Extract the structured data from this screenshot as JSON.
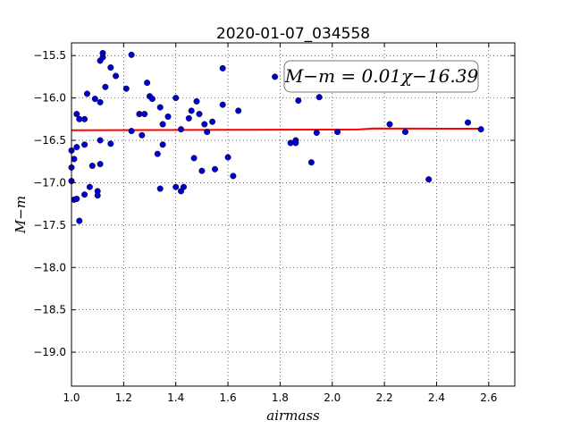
{
  "chart_data": {
    "type": "scatter",
    "title": "2020-01-07_034558",
    "xlabel": "airmass",
    "ylabel": "M−m",
    "xlim": [
      1.0,
      2.7
    ],
    "ylim": [
      -15.35,
      -19.4
    ],
    "y_inverted": true,
    "grid": true,
    "x_ticks": [
      {
        "value": 1.0,
        "label": "1.0"
      },
      {
        "value": 1.2,
        "label": "1.2"
      },
      {
        "value": 1.4,
        "label": "1.4"
      },
      {
        "value": 1.6,
        "label": "1.6"
      },
      {
        "value": 1.8,
        "label": "1.8"
      },
      {
        "value": 2.0,
        "label": "2.0"
      },
      {
        "value": 2.2,
        "label": "2.2"
      },
      {
        "value": 2.4,
        "label": "2.4"
      },
      {
        "value": 2.6,
        "label": "2.6"
      }
    ],
    "y_ticks": [
      {
        "value": -15.5,
        "label": "−15.5"
      },
      {
        "value": -16.0,
        "label": "−16.0"
      },
      {
        "value": -16.5,
        "label": "−16.5"
      },
      {
        "value": -17.0,
        "label": "−17.0"
      },
      {
        "value": -17.5,
        "label": "−17.5"
      },
      {
        "value": -18.0,
        "label": "−18.0"
      },
      {
        "value": -18.5,
        "label": "−18.5"
      },
      {
        "value": -19.0,
        "label": "−19.0"
      }
    ],
    "annotation": "M−m = 0.01χ−16.39",
    "annotation_anchor": {
      "x": 2.33,
      "y": -15.8
    },
    "series": [
      {
        "marker_color": "#0000cc",
        "points": [
          [
            1.0,
            -16.62
          ],
          [
            1.0,
            -16.82
          ],
          [
            1.0,
            -16.98
          ],
          [
            1.01,
            -16.72
          ],
          [
            1.01,
            -17.2
          ],
          [
            1.02,
            -16.19
          ],
          [
            1.02,
            -16.58
          ],
          [
            1.02,
            -17.19
          ],
          [
            1.03,
            -16.25
          ],
          [
            1.03,
            -17.45
          ],
          [
            1.05,
            -16.25
          ],
          [
            1.05,
            -16.55
          ],
          [
            1.05,
            -17.14
          ],
          [
            1.06,
            -15.95
          ],
          [
            1.07,
            -17.05
          ],
          [
            1.08,
            -16.8
          ],
          [
            1.09,
            -16.01
          ],
          [
            1.1,
            -17.1
          ],
          [
            1.1,
            -17.15
          ],
          [
            1.11,
            -16.05
          ],
          [
            1.11,
            -16.5
          ],
          [
            1.11,
            -16.78
          ],
          [
            1.11,
            -15.56
          ],
          [
            1.12,
            -15.52
          ],
          [
            1.12,
            -15.47
          ],
          [
            1.13,
            -15.87
          ],
          [
            1.15,
            -15.64
          ],
          [
            1.15,
            -16.54
          ],
          [
            1.17,
            -15.74
          ],
          [
            1.21,
            -15.89
          ],
          [
            1.23,
            -15.49
          ],
          [
            1.23,
            -16.39
          ],
          [
            1.26,
            -16.19
          ],
          [
            1.27,
            -16.44
          ],
          [
            1.28,
            -16.19
          ],
          [
            1.29,
            -15.82
          ],
          [
            1.3,
            -15.98
          ],
          [
            1.31,
            -16.01
          ],
          [
            1.33,
            -16.66
          ],
          [
            1.34,
            -16.11
          ],
          [
            1.34,
            -17.07
          ],
          [
            1.35,
            -16.55
          ],
          [
            1.35,
            -16.31
          ],
          [
            1.37,
            -16.22
          ],
          [
            1.4,
            -16.0
          ],
          [
            1.4,
            -17.05
          ],
          [
            1.42,
            -17.1
          ],
          [
            1.42,
            -16.37
          ],
          [
            1.43,
            -17.05
          ],
          [
            1.45,
            -16.24
          ],
          [
            1.46,
            -16.15
          ],
          [
            1.47,
            -16.71
          ],
          [
            1.48,
            -16.04
          ],
          [
            1.49,
            -16.19
          ],
          [
            1.5,
            -16.86
          ],
          [
            1.51,
            -16.31
          ],
          [
            1.52,
            -16.4
          ],
          [
            1.54,
            -16.28
          ],
          [
            1.55,
            -16.84
          ],
          [
            1.58,
            -15.65
          ],
          [
            1.58,
            -16.08
          ],
          [
            1.6,
            -16.7
          ],
          [
            1.62,
            -16.92
          ],
          [
            1.64,
            -16.15
          ],
          [
            1.78,
            -15.75
          ],
          [
            1.84,
            -16.53
          ],
          [
            1.86,
            -16.5
          ],
          [
            1.86,
            -16.53
          ],
          [
            1.87,
            -16.03
          ],
          [
            1.92,
            -16.76
          ],
          [
            1.94,
            -16.41
          ],
          [
            1.95,
            -15.99
          ],
          [
            2.02,
            -16.4
          ],
          [
            2.22,
            -16.31
          ],
          [
            2.28,
            -16.4
          ],
          [
            2.37,
            -16.96
          ],
          [
            2.52,
            -16.29
          ],
          [
            2.57,
            -16.37
          ]
        ]
      },
      {
        "type": "line",
        "color": "#ff0000",
        "points": [
          [
            1.0,
            -16.38
          ],
          [
            1.6,
            -16.376
          ],
          [
            2.0,
            -16.373
          ],
          [
            2.1,
            -16.372
          ],
          [
            2.16,
            -16.36
          ],
          [
            2.3,
            -16.361
          ],
          [
            2.57,
            -16.362
          ]
        ]
      }
    ]
  }
}
